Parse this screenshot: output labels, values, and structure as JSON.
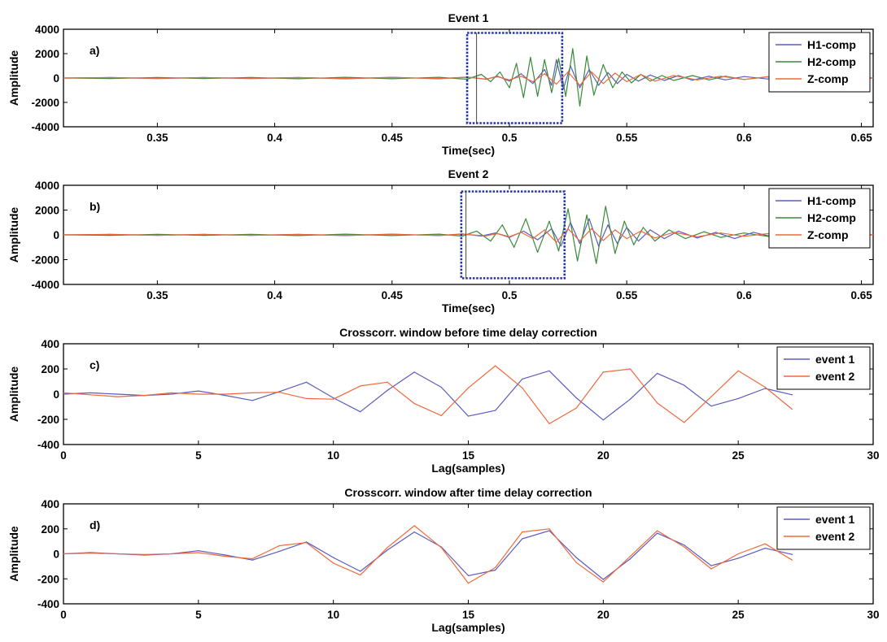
{
  "chart_data": [
    {
      "id": "a",
      "type": "line",
      "title": "Event 1",
      "panel_label": "a)",
      "xlabel": "Time(sec)",
      "ylabel": "Amplitude",
      "xlim": [
        0.31,
        0.655
      ],
      "ylim": [
        -4000,
        4000
      ],
      "xticks": [
        0.35,
        0.4,
        0.45,
        0.5,
        0.55,
        0.6,
        0.65
      ],
      "xtick_labels": [
        "0.35",
        "0.4",
        "0.45",
        "0.5",
        "0.55",
        "0.6",
        "0.65"
      ],
      "yticks": [
        -4000,
        -2000,
        0,
        2000,
        4000
      ],
      "ytick_labels": [
        "-4000",
        "-2000",
        "0",
        "2000",
        "4000"
      ],
      "grid": false,
      "legend_position": "top-right",
      "highlight_box": {
        "x": [
          0.482,
          0.5225
        ],
        "y": [
          -3700,
          3700
        ]
      },
      "marker_line_x": 0.486,
      "series": [
        {
          "name": "H1-comp",
          "color": "#5b5bc0",
          "x": [
            0.31,
            0.33,
            0.35,
            0.37,
            0.39,
            0.41,
            0.43,
            0.45,
            0.47,
            0.482,
            0.49,
            0.495,
            0.5,
            0.505,
            0.51,
            0.515,
            0.518,
            0.52,
            0.523,
            0.526,
            0.53,
            0.534,
            0.538,
            0.542,
            0.546,
            0.55,
            0.555,
            0.56,
            0.566,
            0.572,
            0.578,
            0.585,
            0.592,
            0.6,
            0.61,
            0.62,
            0.635,
            0.655
          ],
          "y": [
            0,
            40,
            -40,
            40,
            -40,
            40,
            -60,
            60,
            -60,
            80,
            -100,
            150,
            -250,
            350,
            -450,
            700,
            -600,
            1500,
            -900,
            1000,
            -800,
            700,
            -600,
            450,
            -450,
            300,
            -250,
            250,
            -200,
            200,
            -180,
            150,
            -150,
            120,
            -80,
            60,
            -40,
            0
          ]
        },
        {
          "name": "H2-comp",
          "color": "#3a8a3a",
          "x": [
            0.31,
            0.33,
            0.35,
            0.37,
            0.39,
            0.41,
            0.43,
            0.45,
            0.47,
            0.482,
            0.488,
            0.492,
            0.496,
            0.5,
            0.503,
            0.506,
            0.509,
            0.512,
            0.515,
            0.518,
            0.521,
            0.524,
            0.527,
            0.53,
            0.533,
            0.536,
            0.54,
            0.544,
            0.548,
            0.552,
            0.556,
            0.56,
            0.565,
            0.57,
            0.578,
            0.585,
            0.592,
            0.6,
            0.61,
            0.62,
            0.635,
            0.655
          ],
          "y": [
            0,
            -40,
            40,
            -40,
            40,
            -60,
            60,
            -60,
            60,
            -100,
            300,
            -300,
            500,
            -800,
            1200,
            -1600,
            1700,
            -1500,
            1500,
            -1200,
            1600,
            -1500,
            2400,
            -2300,
            1800,
            -1400,
            1100,
            -800,
            500,
            -400,
            300,
            -250,
            200,
            -200,
            200,
            -150,
            150,
            -120,
            100,
            -60,
            40,
            0
          ]
        },
        {
          "name": "Z-comp",
          "color": "#ee6a3a",
          "x": [
            0.31,
            0.33,
            0.35,
            0.37,
            0.39,
            0.41,
            0.43,
            0.45,
            0.47,
            0.482,
            0.49,
            0.495,
            0.5,
            0.505,
            0.51,
            0.515,
            0.52,
            0.525,
            0.53,
            0.535,
            0.54,
            0.545,
            0.55,
            0.556,
            0.562,
            0.57,
            0.58,
            0.59,
            0.6,
            0.61,
            0.62,
            0.635,
            0.655
          ],
          "y": [
            0,
            30,
            -30,
            30,
            -30,
            30,
            -40,
            40,
            -40,
            60,
            -80,
            100,
            -150,
            150,
            -300,
            350,
            -500,
            500,
            -600,
            500,
            -450,
            400,
            -300,
            300,
            -250,
            200,
            -150,
            150,
            -120,
            100,
            -60,
            40,
            0
          ]
        }
      ]
    },
    {
      "id": "b",
      "type": "line",
      "title": "Event 2",
      "panel_label": "b)",
      "xlabel": "Time(sec)",
      "ylabel": "Amplitude",
      "xlim": [
        0.31,
        0.655
      ],
      "ylim": [
        -4000,
        4000
      ],
      "xticks": [
        0.35,
        0.4,
        0.45,
        0.5,
        0.55,
        0.6,
        0.65
      ],
      "xtick_labels": [
        "0.35",
        "0.4",
        "0.45",
        "0.5",
        "0.55",
        "0.6",
        "0.65"
      ],
      "yticks": [
        -4000,
        -2000,
        0,
        2000,
        4000
      ],
      "ytick_labels": [
        "-4000",
        "-2000",
        "0",
        "2000",
        "4000"
      ],
      "grid": false,
      "legend_position": "top-right",
      "highlight_box": {
        "x": [
          0.4795,
          0.5235
        ],
        "y": [
          -3500,
          3500
        ]
      },
      "marker_line_x": 0.4815,
      "series": [
        {
          "name": "H1-comp",
          "color": "#5b5bc0",
          "x": [
            0.31,
            0.33,
            0.35,
            0.37,
            0.39,
            0.41,
            0.43,
            0.45,
            0.47,
            0.48,
            0.488,
            0.494,
            0.5,
            0.506,
            0.512,
            0.518,
            0.522,
            0.526,
            0.53,
            0.534,
            0.538,
            0.542,
            0.546,
            0.55,
            0.555,
            0.56,
            0.566,
            0.572,
            0.58,
            0.588,
            0.596,
            0.604,
            0.612,
            0.62,
            0.635,
            0.655
          ],
          "y": [
            0,
            40,
            -40,
            40,
            -40,
            40,
            -60,
            60,
            -60,
            80,
            -100,
            150,
            -200,
            300,
            -400,
            500,
            -900,
            1000,
            -700,
            1300,
            -900,
            800,
            -700,
            600,
            -500,
            400,
            -300,
            300,
            -250,
            200,
            -300,
            200,
            -150,
            100,
            -50,
            0
          ]
        },
        {
          "name": "H2-comp",
          "color": "#3a8a3a",
          "x": [
            0.31,
            0.33,
            0.35,
            0.37,
            0.39,
            0.41,
            0.43,
            0.45,
            0.47,
            0.48,
            0.486,
            0.492,
            0.497,
            0.502,
            0.507,
            0.512,
            0.517,
            0.521,
            0.525,
            0.529,
            0.533,
            0.537,
            0.541,
            0.545,
            0.549,
            0.553,
            0.557,
            0.562,
            0.568,
            0.575,
            0.583,
            0.59,
            0.6,
            0.61,
            0.62,
            0.635,
            0.655
          ],
          "y": [
            0,
            -40,
            40,
            -40,
            40,
            -60,
            60,
            -60,
            60,
            -100,
            300,
            -500,
            800,
            -1000,
            1300,
            -1400,
            1100,
            -1300,
            2100,
            -2100,
            1600,
            -2300,
            2300,
            -1500,
            1100,
            -800,
            600,
            -500,
            400,
            -300,
            250,
            -200,
            150,
            -120,
            80,
            -40,
            0
          ]
        },
        {
          "name": "Z-comp",
          "color": "#ee6a3a",
          "x": [
            0.31,
            0.33,
            0.35,
            0.37,
            0.39,
            0.41,
            0.43,
            0.45,
            0.47,
            0.48,
            0.49,
            0.495,
            0.5,
            0.505,
            0.51,
            0.515,
            0.52,
            0.525,
            0.53,
            0.535,
            0.54,
            0.545,
            0.55,
            0.556,
            0.562,
            0.57,
            0.58,
            0.59,
            0.6,
            0.61,
            0.62,
            0.635,
            0.655
          ],
          "y": [
            0,
            30,
            -30,
            30,
            -30,
            30,
            -40,
            40,
            -40,
            60,
            -80,
            100,
            -150,
            200,
            -300,
            400,
            -600,
            500,
            -500,
            500,
            -450,
            400,
            -300,
            300,
            -250,
            200,
            -150,
            150,
            -120,
            100,
            -60,
            40,
            0
          ]
        }
      ]
    },
    {
      "id": "c",
      "type": "line",
      "title": "Crosscorr. window before time delay correction",
      "panel_label": "c)",
      "xlabel": "Lag(samples)",
      "ylabel": "Amplitude",
      "xlim": [
        0,
        30
      ],
      "ylim": [
        -400,
        400
      ],
      "xticks": [
        0,
        5,
        10,
        15,
        20,
        25,
        30
      ],
      "xtick_labels": [
        "0",
        "5",
        "10",
        "15",
        "20",
        "25",
        "30"
      ],
      "yticks": [
        -400,
        -200,
        0,
        200,
        400
      ],
      "ytick_labels": [
        "-400",
        "-200",
        "0",
        "200",
        "400"
      ],
      "grid": false,
      "legend_position": "top-right",
      "series": [
        {
          "name": "event 1",
          "color": "#5b5bc0",
          "x": [
            0,
            1,
            2,
            3,
            4,
            5,
            6,
            7,
            8,
            9,
            10,
            11,
            12,
            13,
            14,
            15,
            16,
            17,
            18,
            19,
            20,
            21,
            22,
            23,
            24,
            25,
            26,
            27
          ],
          "y": [
            0,
            10,
            0,
            -10,
            0,
            25,
            -10,
            -50,
            20,
            95,
            -30,
            -140,
            30,
            175,
            55,
            -175,
            -130,
            120,
            185,
            -30,
            -205,
            -40,
            165,
            70,
            -95,
            -35,
            45,
            -5
          ]
        },
        {
          "name": "event 2",
          "color": "#ee6a3a",
          "x": [
            0,
            1,
            2,
            3,
            4,
            5,
            6,
            7,
            8,
            9,
            10,
            11,
            12,
            13,
            14,
            15,
            16,
            17,
            18,
            19,
            20,
            21,
            22,
            23,
            24,
            25,
            26,
            27
          ],
          "y": [
            10,
            -5,
            -20,
            -10,
            10,
            0,
            0,
            10,
            15,
            -35,
            -40,
            65,
            95,
            -75,
            -170,
            50,
            225,
            50,
            -235,
            -110,
            175,
            200,
            -70,
            -225,
            -20,
            185,
            55,
            -120
          ]
        }
      ]
    },
    {
      "id": "d",
      "type": "line",
      "title": "Crosscorr. window after  time delay correction",
      "panel_label": "d)",
      "xlabel": "Lag(samples)",
      "ylabel": "Amplitude",
      "xlim": [
        0,
        30
      ],
      "ylim": [
        -400,
        400
      ],
      "xticks": [
        0,
        5,
        10,
        15,
        20,
        25,
        30
      ],
      "xtick_labels": [
        "0",
        "5",
        "10",
        "15",
        "20",
        "25",
        "30"
      ],
      "yticks": [
        -400,
        -200,
        0,
        200,
        400
      ],
      "ytick_labels": [
        "-400",
        "-200",
        "0",
        "200",
        "400"
      ],
      "grid": false,
      "legend_position": "top-right",
      "series": [
        {
          "name": "event 1",
          "color": "#5b5bc0",
          "x": [
            0,
            1,
            2,
            3,
            4,
            5,
            6,
            7,
            8,
            9,
            10,
            11,
            12,
            13,
            14,
            15,
            16,
            17,
            18,
            19,
            20,
            21,
            22,
            23,
            24,
            25,
            26,
            27
          ],
          "y": [
            0,
            10,
            0,
            -10,
            0,
            25,
            -10,
            -50,
            20,
            95,
            -30,
            -140,
            30,
            175,
            55,
            -175,
            -130,
            120,
            185,
            -30,
            -205,
            -40,
            165,
            70,
            -95,
            -35,
            45,
            -5
          ]
        },
        {
          "name": "event 2",
          "color": "#ee6a3a",
          "x": [
            0,
            1,
            2,
            3,
            4,
            5,
            6,
            7,
            8,
            9,
            10,
            11,
            12,
            13,
            14,
            15,
            16,
            17,
            18,
            19,
            20,
            21,
            22,
            23,
            24,
            25,
            26,
            27
          ],
          "y": [
            0,
            5,
            0,
            -5,
            0,
            10,
            -20,
            -40,
            65,
            90,
            -75,
            -170,
            50,
            225,
            50,
            -235,
            -110,
            175,
            200,
            -70,
            -225,
            -20,
            185,
            55,
            -120,
            0,
            80,
            -50
          ]
        }
      ]
    }
  ]
}
